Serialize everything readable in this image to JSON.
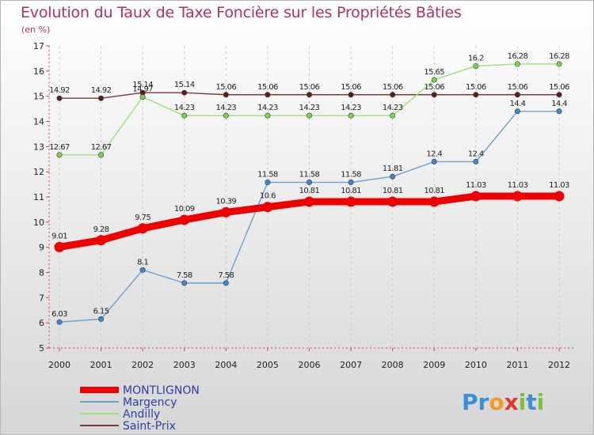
{
  "title": "Evolution du Taux de Taxe Foncière sur les Propriétés Bâties",
  "unit": "(en %)",
  "logo": {
    "letters": [
      "P",
      "r",
      "o",
      "x",
      "i",
      "t",
      "i"
    ],
    "colors": [
      "#3a8fd8",
      "#3a8fd8",
      "#f29a22",
      "#e03b2a",
      "#7bbf3a",
      "#3a8fd8",
      "#7bbf3a"
    ]
  },
  "chart_data": {
    "type": "line",
    "title": "Evolution du Taux de Taxe Foncière sur les Propriétés Bâties",
    "ylabel": "(en %)",
    "xlabel": "",
    "ylim": [
      5,
      17
    ],
    "yticks": [
      5,
      6,
      7,
      8,
      9,
      10,
      11,
      12,
      13,
      14,
      15,
      16,
      17
    ],
    "categories": [
      "2000",
      "2001",
      "2002",
      "2003",
      "2004",
      "2005",
      "2006",
      "2007",
      "2008",
      "2009",
      "2010",
      "2011",
      "2012"
    ],
    "series": [
      {
        "name": "Saint-Prix",
        "color": "#7a3a3a",
        "marker": "#5a1e1e",
        "values": [
          14.92,
          14.92,
          15.14,
          15.14,
          15.06,
          15.06,
          15.06,
          15.06,
          15.06,
          15.06,
          15.06,
          15.06,
          15.06
        ],
        "labels": [
          "14.92",
          "14.92",
          "15.14",
          "15.14",
          "15.06",
          "15.06",
          "15.06",
          "15.06",
          "15.06",
          "15.06",
          "15.06",
          "15.06",
          "15.06"
        ]
      },
      {
        "name": "Andilly",
        "color": "#9be07a",
        "marker": "#7fd24e",
        "values": [
          12.67,
          12.67,
          14.97,
          14.23,
          14.23,
          14.23,
          14.23,
          14.23,
          14.23,
          15.65,
          16.2,
          16.28,
          16.28
        ],
        "labels": [
          "12.67",
          "12.67",
          "14.97",
          "14.23",
          "14.23",
          "14.23",
          "14.23",
          "14.23",
          "14.23",
          "15.65",
          "16.2",
          "16.28",
          "16.28"
        ]
      },
      {
        "name": "Margency",
        "color": "#6a9fd0",
        "marker": "#3f86cf",
        "values": [
          6.03,
          6.15,
          8.1,
          7.58,
          7.58,
          11.58,
          11.58,
          11.58,
          11.81,
          12.4,
          12.4,
          14.4,
          14.4
        ],
        "labels": [
          "6.03",
          "6.15",
          "8.1",
          "7.58",
          "7.58",
          "11.58",
          "11.58",
          "11.58",
          "11.81",
          "12.4",
          "12.4",
          "14.4",
          "14.4"
        ]
      },
      {
        "name": "MONTLIGNON",
        "color": "#ee0000",
        "marker": "#ee0000",
        "values": [
          9.01,
          9.28,
          9.75,
          10.09,
          10.39,
          10.6,
          10.81,
          10.81,
          10.81,
          10.81,
          11.03,
          11.03,
          11.03
        ],
        "labels": [
          "9.01",
          "9.28",
          "9.75",
          "10.09",
          "10.39",
          "10.6",
          "10.81",
          "10.81",
          "10.81",
          "10.81",
          "11.03",
          "11.03",
          "11.03"
        ]
      }
    ],
    "legend": [
      "MONTLIGNON",
      "Margency",
      "Andilly",
      "Saint-Prix"
    ],
    "legend_position": "bottom-left"
  }
}
